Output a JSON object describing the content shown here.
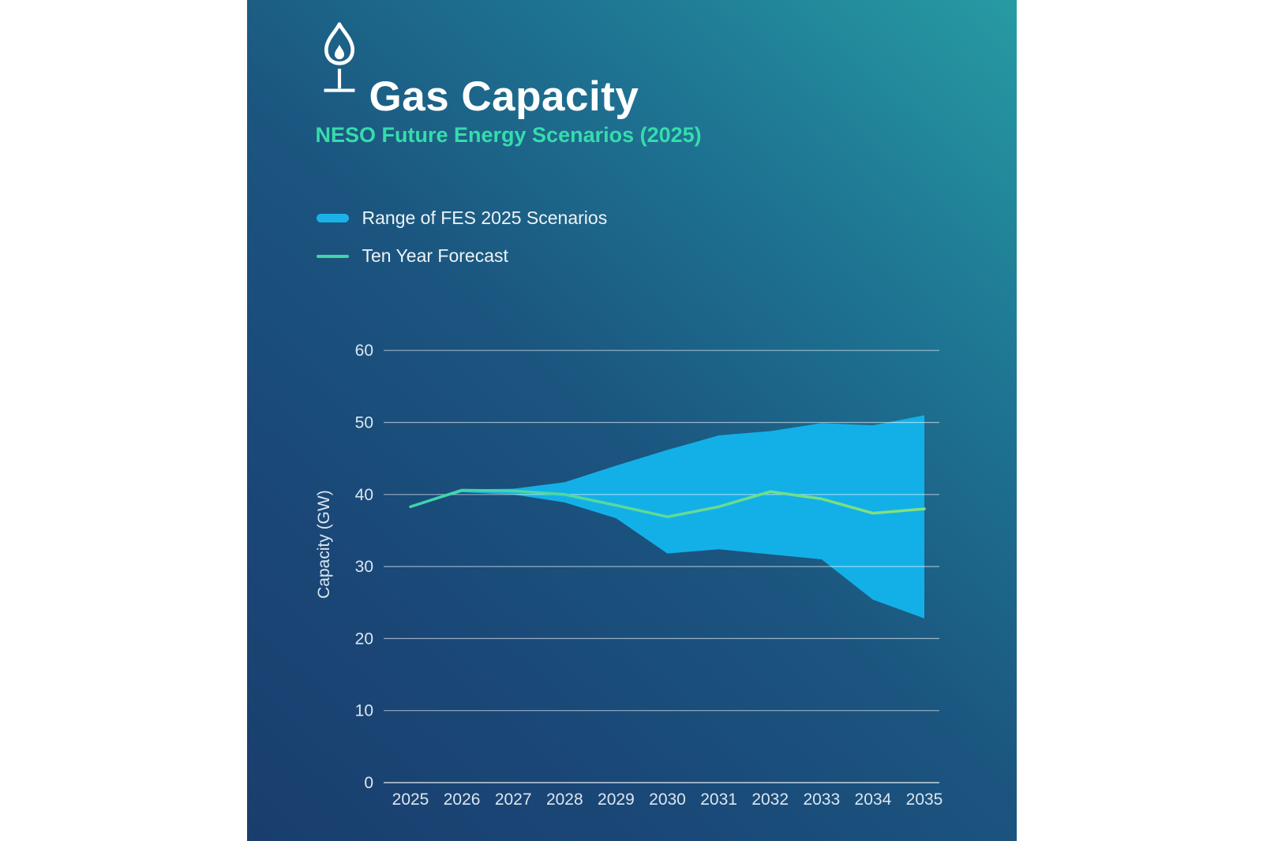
{
  "header": {
    "title": "Gas Capacity",
    "subtitle": "NESO Future Energy Scenarios (2025)",
    "icon": "gas-flame-icon"
  },
  "legend": [
    {
      "label": "Range of FES 2025 Scenarios",
      "swatch": "band",
      "color": "#1cb2e8"
    },
    {
      "label": "Ten Year Forecast",
      "swatch": "line",
      "color": "#41d6a8"
    }
  ],
  "colors": {
    "card_gradient_top_right": "#279ba3",
    "card_gradient_bottom_left": "#193e6d",
    "band": "#13b0e8",
    "forecast_line_start": "#3bd4ad",
    "forecast_line_end": "#86e17b",
    "subtitle_accent": "#36dcab",
    "axis_text": "#dce7f0",
    "gridline": "rgba(255,255,255,0.55)"
  },
  "chart_data": {
    "type": "area",
    "title": "Gas Capacity",
    "subtitle": "NESO Future Energy Scenarios (2025)",
    "x": [
      2025,
      2026,
      2027,
      2028,
      2029,
      2030,
      2031,
      2032,
      2033,
      2034,
      2035
    ],
    "series": [
      {
        "name": "Range of FES 2025 Scenarios",
        "type": "band",
        "upper": [
          38.3,
          40.7,
          40.8,
          41.7,
          44.0,
          46.2,
          48.2,
          48.8,
          49.9,
          49.6,
          51.0
        ],
        "lower": [
          38.3,
          40.3,
          40.0,
          38.9,
          36.7,
          31.8,
          32.4,
          31.7,
          31.0,
          25.4,
          22.8
        ],
        "color": "#13b0e8"
      },
      {
        "name": "Ten Year Forecast",
        "type": "line",
        "values": [
          38.3,
          40.6,
          40.5,
          40.0,
          38.5,
          36.9,
          38.3,
          40.4,
          39.4,
          37.4,
          38.0
        ],
        "color_start": "#3bd4ad",
        "color_end": "#86e17b"
      }
    ],
    "xlabel": "",
    "ylabel": "Capacity (GW)",
    "ylim": [
      0,
      60
    ],
    "yticks": [
      0,
      10,
      20,
      30,
      40,
      50,
      60
    ],
    "grid": true,
    "legend_position": "top-left"
  }
}
